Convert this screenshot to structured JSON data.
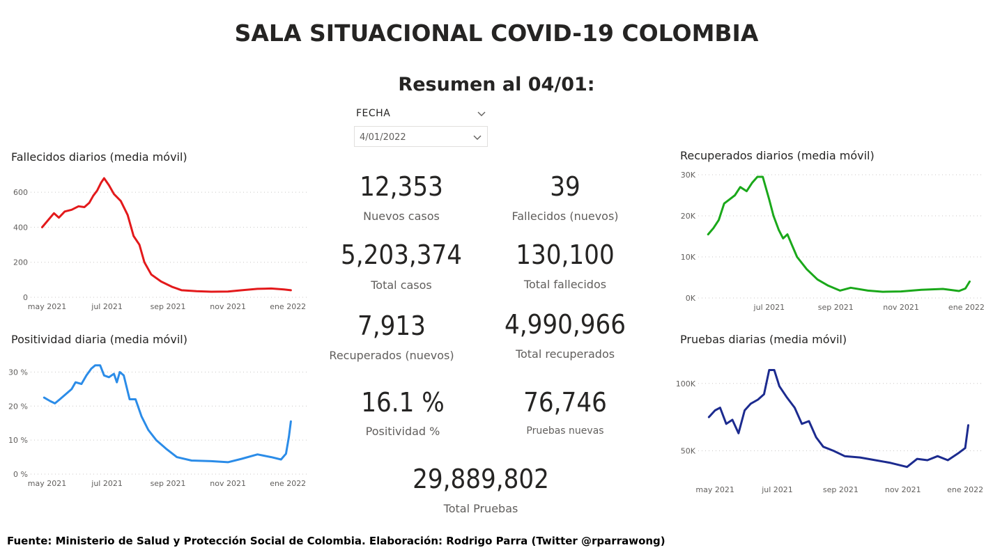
{
  "header": {
    "title": "SALA SITUACIONAL COVID-19 COLOMBIA",
    "subtitle": "Resumen al 04/01:"
  },
  "filter": {
    "label": "FECHA",
    "value": "4/01/2022",
    "icons": [
      "chevron-down-icon"
    ]
  },
  "kpis": [
    {
      "value": "12,353",
      "label": "Nuevos casos"
    },
    {
      "value": "39",
      "label": "Fallecidos (nuevos)"
    },
    {
      "value": "5,203,374",
      "label": "Total casos"
    },
    {
      "value": "130,100",
      "label": "Total fallecidos"
    },
    {
      "value": "7,913",
      "label": "Recuperados (nuevos)"
    },
    {
      "value": "4,990,966",
      "label": "Total recuperados"
    },
    {
      "value": "16.1 %",
      "label": "Positividad %"
    },
    {
      "value": "76,746",
      "label": "Pruebas nuevas"
    },
    {
      "value": "29,889,802",
      "label": "Total Pruebas"
    }
  ],
  "footer": "Fuente: Ministerio de Salud y Protección Social de Colombia. Elaboración: Rodrigo Parra (Twitter @rparrawong)",
  "colors": {
    "fallecidos": "#e3191b",
    "positividad": "#2b8ce8",
    "recuperados": "#1aa81a",
    "pruebas": "#1c2b8f",
    "gridline": "#c8c6c4",
    "text": "#252423"
  },
  "chart_data": [
    {
      "id": "fallecidos",
      "type": "line",
      "title": "Fallecidos diarios (media móvil)",
      "color": "#e3191b",
      "xlim": [
        "2021-04-20",
        "2022-01-20"
      ],
      "xticks": [
        {
          "date": "2021-05-01",
          "label": "may 2021"
        },
        {
          "date": "2021-07-01",
          "label": "jul 2021"
        },
        {
          "date": "2021-09-01",
          "label": "sep 2021"
        },
        {
          "date": "2021-11-01",
          "label": "nov 2021"
        },
        {
          "date": "2022-01-01",
          "label": "ene 2022"
        }
      ],
      "ylim": [
        0,
        700
      ],
      "yticks": [
        {
          "v": 0,
          "label": "0"
        },
        {
          "v": 200,
          "label": "200"
        },
        {
          "v": 400,
          "label": "400"
        },
        {
          "v": 600,
          "label": "600"
        }
      ],
      "grid": true,
      "series": [
        {
          "points": [
            [
              "2021-04-26",
              400
            ],
            [
              "2021-05-02",
              440
            ],
            [
              "2021-05-08",
              480
            ],
            [
              "2021-05-13",
              455
            ],
            [
              "2021-05-19",
              490
            ],
            [
              "2021-05-26",
              500
            ],
            [
              "2021-06-02",
              520
            ],
            [
              "2021-06-08",
              515
            ],
            [
              "2021-06-13",
              540
            ],
            [
              "2021-06-17",
              580
            ],
            [
              "2021-06-21",
              610
            ],
            [
              "2021-06-25",
              655
            ],
            [
              "2021-06-28",
              680
            ],
            [
              "2021-07-03",
              640
            ],
            [
              "2021-07-08",
              590
            ],
            [
              "2021-07-15",
              550
            ],
            [
              "2021-07-22",
              470
            ],
            [
              "2021-07-28",
              350
            ],
            [
              "2021-08-03",
              300
            ],
            [
              "2021-08-08",
              200
            ],
            [
              "2021-08-15",
              130
            ],
            [
              "2021-08-25",
              90
            ],
            [
              "2021-09-05",
              60
            ],
            [
              "2021-09-15",
              40
            ],
            [
              "2021-09-30",
              35
            ],
            [
              "2021-10-15",
              32
            ],
            [
              "2021-11-01",
              33
            ],
            [
              "2021-11-15",
              40
            ],
            [
              "2021-12-01",
              48
            ],
            [
              "2021-12-15",
              50
            ],
            [
              "2021-12-28",
              45
            ],
            [
              "2022-01-04",
              40
            ]
          ]
        }
      ]
    },
    {
      "id": "positividad",
      "type": "line",
      "title": "Positividad diaria (media móvil)",
      "color": "#2b8ce8",
      "xlim": [
        "2021-04-20",
        "2022-01-20"
      ],
      "xticks": [
        {
          "date": "2021-05-01",
          "label": "may 2021"
        },
        {
          "date": "2021-07-01",
          "label": "jul 2021"
        },
        {
          "date": "2021-09-01",
          "label": "sep 2021"
        },
        {
          "date": "2021-11-01",
          "label": "nov 2021"
        },
        {
          "date": "2022-01-01",
          "label": "ene 2022"
        }
      ],
      "ylim": [
        0,
        35
      ],
      "yticks": [
        {
          "v": 0,
          "label": "0 %"
        },
        {
          "v": 10,
          "label": "10 %"
        },
        {
          "v": 20,
          "label": "20 %"
        },
        {
          "v": 30,
          "label": "30 %"
        }
      ],
      "grid": true,
      "series": [
        {
          "points": [
            [
              "2021-04-28",
              22.5
            ],
            [
              "2021-05-04",
              21.5
            ],
            [
              "2021-05-09",
              20.8
            ],
            [
              "2021-05-14",
              22
            ],
            [
              "2021-05-20",
              23.5
            ],
            [
              "2021-05-26",
              25
            ],
            [
              "2021-05-30",
              27
            ],
            [
              "2021-06-05",
              26.5
            ],
            [
              "2021-06-10",
              29
            ],
            [
              "2021-06-15",
              31
            ],
            [
              "2021-06-19",
              32
            ],
            [
              "2021-06-24",
              32
            ],
            [
              "2021-06-28",
              29
            ],
            [
              "2021-07-03",
              28.5
            ],
            [
              "2021-07-08",
              29.5
            ],
            [
              "2021-07-11",
              27
            ],
            [
              "2021-07-14",
              30
            ],
            [
              "2021-07-18",
              29
            ],
            [
              "2021-07-24",
              22
            ],
            [
              "2021-07-30",
              22
            ],
            [
              "2021-08-05",
              17
            ],
            [
              "2021-08-12",
              13
            ],
            [
              "2021-08-20",
              10
            ],
            [
              "2021-08-30",
              7.5
            ],
            [
              "2021-09-10",
              5
            ],
            [
              "2021-09-25",
              4
            ],
            [
              "2021-10-15",
              3.8
            ],
            [
              "2021-11-01",
              3.5
            ],
            [
              "2021-11-15",
              4.5
            ],
            [
              "2021-12-01",
              5.8
            ],
            [
              "2021-12-15",
              5
            ],
            [
              "2021-12-25",
              4.3
            ],
            [
              "2021-12-30",
              6
            ],
            [
              "2022-01-02",
              11
            ],
            [
              "2022-01-04",
              15.5
            ]
          ]
        }
      ]
    },
    {
      "id": "recuperados",
      "type": "line",
      "title": "Recuperados diarios (media móvil)",
      "color": "#1aa81a",
      "xlim": [
        "2021-05-01",
        "2022-01-16"
      ],
      "xticks": [
        {
          "date": "2021-07-01",
          "label": "jul 2021"
        },
        {
          "date": "2021-09-01",
          "label": "sep 2021"
        },
        {
          "date": "2021-11-01",
          "label": "nov 2021"
        },
        {
          "date": "2022-01-01",
          "label": "ene 2022"
        }
      ],
      "ylim": [
        0,
        30000
      ],
      "yticks": [
        {
          "v": 0,
          "label": "0K"
        },
        {
          "v": 10000,
          "label": "10K"
        },
        {
          "v": 20000,
          "label": "20K"
        },
        {
          "v": 30000,
          "label": "30K"
        }
      ],
      "grid": true,
      "series": [
        {
          "points": [
            [
              "2021-05-05",
              15500
            ],
            [
              "2021-05-10",
              17000
            ],
            [
              "2021-05-15",
              19000
            ],
            [
              "2021-05-20",
              23000
            ],
            [
              "2021-05-25",
              24000
            ],
            [
              "2021-05-30",
              25000
            ],
            [
              "2021-06-04",
              27000
            ],
            [
              "2021-06-10",
              26000
            ],
            [
              "2021-06-15",
              28000
            ],
            [
              "2021-06-20",
              29500
            ],
            [
              "2021-06-25",
              29500
            ],
            [
              "2021-07-01",
              24000
            ],
            [
              "2021-07-05",
              20000
            ],
            [
              "2021-07-10",
              16500
            ],
            [
              "2021-07-14",
              14500
            ],
            [
              "2021-07-18",
              15500
            ],
            [
              "2021-07-22",
              13000
            ],
            [
              "2021-07-27",
              10000
            ],
            [
              "2021-08-05",
              7000
            ],
            [
              "2021-08-15",
              4500
            ],
            [
              "2021-08-25",
              3000
            ],
            [
              "2021-09-05",
              1800
            ],
            [
              "2021-09-15",
              2500
            ],
            [
              "2021-10-01",
              1800
            ],
            [
              "2021-10-15",
              1500
            ],
            [
              "2021-11-01",
              1600
            ],
            [
              "2021-11-20",
              2000
            ],
            [
              "2021-12-10",
              2200
            ],
            [
              "2021-12-25",
              1700
            ],
            [
              "2021-12-31",
              2300
            ],
            [
              "2022-01-04",
              4000
            ]
          ]
        }
      ]
    },
    {
      "id": "pruebas",
      "type": "line",
      "title": "Pruebas diarias (media móvil)",
      "color": "#1c2b8f",
      "xlim": [
        "2021-04-20",
        "2022-01-18"
      ],
      "xticks": [
        {
          "date": "2021-05-01",
          "label": "may 2021"
        },
        {
          "date": "2021-07-01",
          "label": "jul 2021"
        },
        {
          "date": "2021-09-01",
          "label": "sep 2021"
        },
        {
          "date": "2021-11-01",
          "label": "nov 2021"
        },
        {
          "date": "2022-01-01",
          "label": "ene 2022"
        }
      ],
      "ylim": [
        28000,
        118000
      ],
      "yticks": [
        {
          "v": 50000,
          "label": "50K"
        },
        {
          "v": 100000,
          "label": "100K"
        }
      ],
      "grid": true,
      "series": [
        {
          "points": [
            [
              "2021-04-25",
              75000
            ],
            [
              "2021-05-01",
              80000
            ],
            [
              "2021-05-06",
              82000
            ],
            [
              "2021-05-12",
              70000
            ],
            [
              "2021-05-18",
              73000
            ],
            [
              "2021-05-24",
              63000
            ],
            [
              "2021-05-30",
              80000
            ],
            [
              "2021-06-05",
              85000
            ],
            [
              "2021-06-12",
              88000
            ],
            [
              "2021-06-18",
              92000
            ],
            [
              "2021-06-23",
              110000
            ],
            [
              "2021-06-28",
              110000
            ],
            [
              "2021-07-03",
              98000
            ],
            [
              "2021-07-10",
              90000
            ],
            [
              "2021-07-18",
              82000
            ],
            [
              "2021-07-25",
              70000
            ],
            [
              "2021-08-01",
              72000
            ],
            [
              "2021-08-08",
              60000
            ],
            [
              "2021-08-15",
              53000
            ],
            [
              "2021-08-25",
              50000
            ],
            [
              "2021-09-05",
              46000
            ],
            [
              "2021-09-20",
              45000
            ],
            [
              "2021-10-05",
              43000
            ],
            [
              "2021-10-20",
              41000
            ],
            [
              "2021-11-05",
              38000
            ],
            [
              "2021-11-15",
              44000
            ],
            [
              "2021-11-25",
              43000
            ],
            [
              "2021-12-05",
              46000
            ],
            [
              "2021-12-15",
              43000
            ],
            [
              "2021-12-25",
              48000
            ],
            [
              "2022-01-01",
              52000
            ],
            [
              "2022-01-04",
              69000
            ]
          ]
        }
      ]
    }
  ]
}
